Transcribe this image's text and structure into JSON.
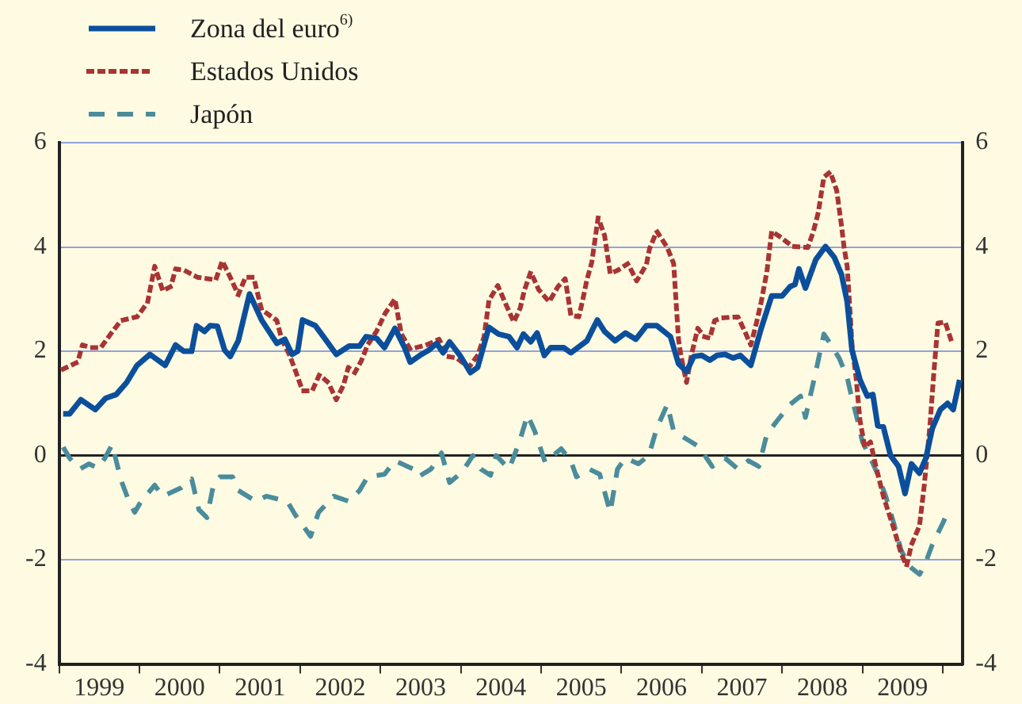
{
  "chart_data": {
    "type": "line",
    "xlim": [
      1999,
      2010.25
    ],
    "xticks": [
      {
        "value": 1999,
        "label": null
      },
      {
        "value": 1999.5,
        "label": "1999"
      },
      {
        "value": 2000,
        "label": null
      },
      {
        "value": 2000.5,
        "label": "2000"
      },
      {
        "value": 2001,
        "label": null
      },
      {
        "value": 2001.5,
        "label": "2001"
      },
      {
        "value": 2002,
        "label": null
      },
      {
        "value": 2002.5,
        "label": "2002"
      },
      {
        "value": 2003,
        "label": null
      },
      {
        "value": 2003.5,
        "label": "2003"
      },
      {
        "value": 2004,
        "label": null
      },
      {
        "value": 2004.5,
        "label": "2004"
      },
      {
        "value": 2005,
        "label": null
      },
      {
        "value": 2005.5,
        "label": "2005"
      },
      {
        "value": 2006,
        "label": null
      },
      {
        "value": 2006.5,
        "label": "2006"
      },
      {
        "value": 2007,
        "label": null
      },
      {
        "value": 2007.5,
        "label": "2007"
      },
      {
        "value": 2008,
        "label": null
      },
      {
        "value": 2008.5,
        "label": "2008"
      },
      {
        "value": 2009,
        "label": null
      },
      {
        "value": 2009.5,
        "label": "2009"
      },
      {
        "value": 2010,
        "label": null
      }
    ],
    "ylim": [
      -4,
      6
    ],
    "yticks": [
      -4,
      -2,
      0,
      2,
      4,
      6
    ],
    "y2lim": [
      -4,
      6
    ],
    "y2ticks": [
      -4,
      -2,
      0,
      2,
      4,
      6
    ],
    "grid": "y",
    "legend": "top left",
    "series": [
      {
        "name": "Zona del euro$^{6)}$",
        "color": "#0b4f9c",
        "line_style": "solid",
        "x": [
          1999.05,
          1999.13,
          1999.27,
          1999.45,
          1999.58,
          1999.71,
          1999.84,
          1999.97,
          2000.13,
          2000.32,
          2000.45,
          2000.55,
          2000.65,
          2000.71,
          2000.81,
          2000.88,
          2000.97,
          2001.06,
          2001.13,
          2001.23,
          2001.37,
          2001.52,
          2001.71,
          2001.81,
          2001.9,
          2001.97,
          2002.03,
          2002.19,
          2002.29,
          2002.45,
          2002.61,
          2002.74,
          2002.82,
          2002.95,
          2003.05,
          2003.18,
          2003.3,
          2003.37,
          2003.49,
          2003.6,
          2003.7,
          2003.78,
          2003.86,
          2003.99,
          2004.12,
          2004.21,
          2004.35,
          2004.47,
          2004.6,
          2004.7,
          2004.78,
          2004.87,
          2004.95,
          2005.04,
          2005.12,
          2005.28,
          2005.37,
          2005.57,
          2005.7,
          2005.79,
          2005.92,
          2006.05,
          2006.18,
          2006.31,
          2006.44,
          2006.61,
          2006.71,
          2006.81,
          2006.9,
          2007.0,
          2007.1,
          2007.19,
          2007.29,
          2007.39,
          2007.48,
          2007.61,
          2007.74,
          2007.87,
          2008.0,
          2008.1,
          2008.16,
          2008.21,
          2008.29,
          2008.42,
          2008.54,
          2008.65,
          2008.74,
          2008.81,
          2008.87,
          2008.97,
          2009.06,
          2009.13,
          2009.19,
          2009.26,
          2009.35,
          2009.45,
          2009.53,
          2009.61,
          2009.71,
          2009.79,
          2009.87,
          2009.97,
          2010.06,
          2010.13,
          2010.21
        ],
        "values": [
          0.8,
          0.8,
          1.07,
          0.88,
          1.1,
          1.17,
          1.4,
          1.73,
          1.94,
          1.73,
          2.12,
          2.0,
          2.0,
          2.49,
          2.38,
          2.49,
          2.48,
          2.02,
          1.9,
          2.2,
          3.1,
          2.6,
          2.15,
          2.23,
          1.94,
          2.0,
          2.6,
          2.49,
          2.28,
          1.94,
          2.1,
          2.1,
          2.28,
          2.25,
          2.07,
          2.44,
          2.07,
          1.79,
          1.92,
          2.02,
          2.15,
          1.97,
          2.18,
          1.92,
          1.59,
          1.69,
          2.46,
          2.33,
          2.28,
          2.07,
          2.33,
          2.18,
          2.35,
          1.92,
          2.07,
          2.07,
          1.97,
          2.2,
          2.6,
          2.38,
          2.2,
          2.35,
          2.23,
          2.49,
          2.49,
          2.28,
          1.76,
          1.61,
          1.9,
          1.92,
          1.83,
          1.92,
          1.94,
          1.87,
          1.92,
          1.73,
          2.44,
          3.06,
          3.06,
          3.24,
          3.28,
          3.58,
          3.21,
          3.76,
          4.01,
          3.8,
          3.47,
          2.95,
          2.02,
          1.45,
          1.14,
          1.17,
          0.57,
          0.55,
          0,
          -0.21,
          -0.73,
          -0.16,
          -0.34,
          -0.05,
          0.52,
          0.88,
          1.0,
          0.88,
          1.45
        ]
      },
      {
        "name": "Estados Unidos",
        "color": "#a83434",
        "line_style": "dotted",
        "x": [
          1999.05,
          1999.23,
          1999.29,
          1999.39,
          1999.52,
          1999.65,
          1999.77,
          1999.97,
          2000.1,
          2000.19,
          2000.29,
          2000.39,
          2000.45,
          2000.56,
          2000.72,
          2000.95,
          2001.03,
          2001.13,
          2001.23,
          2001.32,
          2001.42,
          2001.52,
          2001.71,
          2001.77,
          2001.87,
          2001.95,
          2002.03,
          2002.15,
          2002.24,
          2002.35,
          2002.45,
          2002.54,
          2002.6,
          2002.68,
          2002.76,
          2002.84,
          2002.95,
          2003.06,
          2003.18,
          2003.26,
          2003.37,
          2003.57,
          2003.73,
          2003.83,
          2003.95,
          2004.1,
          2004.21,
          2004.29,
          2004.35,
          2004.46,
          2004.57,
          2004.66,
          2004.74,
          2004.79,
          2004.87,
          2004.97,
          2005.1,
          2005.21,
          2005.3,
          2005.37,
          2005.47,
          2005.52,
          2005.57,
          2005.63,
          2005.71,
          2005.79,
          2005.86,
          2005.95,
          2006.08,
          2006.19,
          2006.31,
          2006.35,
          2006.44,
          2006.57,
          2006.65,
          2006.68,
          2006.71,
          2006.74,
          2006.81,
          2006.87,
          2006.95,
          2007.03,
          2007.1,
          2007.16,
          2007.26,
          2007.45,
          2007.55,
          2007.61,
          2007.68,
          2007.74,
          2007.81,
          2007.87,
          2007.97,
          2008.13,
          2008.32,
          2008.39,
          2008.45,
          2008.52,
          2008.6,
          2008.68,
          2008.74,
          2008.77,
          2008.81,
          2008.84,
          2008.87,
          2008.92,
          2008.97,
          2009.03,
          2009.1,
          2009.16,
          2009.26,
          2009.39,
          2009.48,
          2009.55,
          2009.61,
          2009.71,
          2009.77,
          2009.84,
          2009.89,
          2009.94,
          2010.03,
          2010.1
        ],
        "values": [
          1.66,
          1.79,
          2.12,
          2.07,
          2.07,
          2.35,
          2.59,
          2.66,
          2.93,
          3.63,
          3.16,
          3.24,
          3.58,
          3.55,
          3.42,
          3.37,
          3.73,
          3.42,
          3.08,
          3.42,
          3.42,
          2.8,
          2.59,
          2.23,
          1.92,
          1.59,
          1.24,
          1.24,
          1.55,
          1.4,
          1.07,
          1.35,
          1.69,
          1.59,
          1.81,
          2.12,
          2.38,
          2.73,
          3.0,
          2.33,
          2.04,
          2.12,
          2.23,
          1.9,
          1.87,
          1.69,
          1.92,
          2.28,
          2.97,
          3.26,
          2.87,
          2.56,
          2.83,
          3.16,
          3.52,
          3.18,
          2.95,
          3.24,
          3.39,
          2.69,
          2.66,
          3.0,
          3.37,
          3.7,
          4.56,
          4.22,
          3.49,
          3.55,
          3.68,
          3.35,
          3.66,
          3.97,
          4.3,
          3.99,
          3.68,
          2.95,
          2.23,
          1.92,
          1.4,
          1.92,
          2.44,
          2.28,
          2.25,
          2.59,
          2.64,
          2.66,
          2.33,
          2.12,
          2.54,
          2.95,
          3.52,
          4.3,
          4.2,
          4.01,
          3.99,
          4.3,
          4.66,
          5.34,
          5.44,
          5.08,
          4.4,
          4.01,
          3.63,
          2.9,
          2.12,
          1.5,
          0.67,
          0.16,
          0.26,
          -0.16,
          -0.78,
          -1.4,
          -1.87,
          -2.12,
          -1.71,
          -1.35,
          -0.57,
          0.57,
          1.61,
          2.54,
          2.56,
          2.23
        ]
      },
      {
        "name": "Japón",
        "color": "#4a8c9c",
        "line_style": "dashed",
        "x": [
          1999.05,
          1999.13,
          1999.26,
          1999.37,
          1999.48,
          1999.57,
          1999.66,
          1999.77,
          1999.87,
          1999.94,
          2000.02,
          2000.19,
          2000.29,
          2000.52,
          2000.65,
          2000.74,
          2000.84,
          2000.92,
          2001.0,
          2001.16,
          2001.23,
          2001.45,
          2001.58,
          2001.84,
          2001.94,
          2002.13,
          2002.23,
          2002.42,
          2002.61,
          2002.74,
          2002.84,
          2003.05,
          2003.18,
          2003.41,
          2003.47,
          2003.63,
          2003.76,
          2003.86,
          2004.02,
          2004.15,
          2004.25,
          2004.37,
          2004.44,
          2004.6,
          2004.73,
          2004.83,
          2004.92,
          2005.05,
          2005.25,
          2005.37,
          2005.44,
          2005.6,
          2005.73,
          2005.86,
          2005.95,
          2006.05,
          2006.21,
          2006.34,
          2006.44,
          2006.57,
          2006.65,
          2006.74,
          2006.87,
          2006.97,
          2007.06,
          2007.13,
          2007.29,
          2007.45,
          2007.58,
          2007.71,
          2007.81,
          2007.94,
          2008.1,
          2008.23,
          2008.29,
          2008.42,
          2008.52,
          2008.61,
          2008.71,
          2008.81,
          2008.87,
          2008.94,
          2009.0,
          2009.1,
          2009.19,
          2009.29,
          2009.39,
          2009.48,
          2009.58,
          2009.71,
          2009.77,
          2009.87,
          2010.0,
          2010.06
        ],
        "values": [
          0.16,
          -0.05,
          -0.26,
          -0.16,
          -0.24,
          -0.05,
          0.21,
          -0.47,
          -0.88,
          -1.09,
          -0.88,
          -0.57,
          -0.78,
          -0.62,
          -0.45,
          -1.04,
          -1.19,
          -0.57,
          -0.41,
          -0.41,
          -0.67,
          -0.88,
          -0.78,
          -0.88,
          -1.14,
          -1.55,
          -1.09,
          -0.78,
          -0.88,
          -0.67,
          -0.41,
          -0.36,
          -0.1,
          -0.26,
          -0.41,
          -0.26,
          0.05,
          -0.52,
          -0.31,
          0.0,
          -0.26,
          -0.38,
          0.0,
          -0.26,
          0.26,
          0.78,
          0.47,
          -0.13,
          0.13,
          -0.1,
          -0.41,
          -0.26,
          -0.36,
          -1.09,
          -0.26,
          -0.05,
          -0.16,
          0.0,
          0.52,
          0.98,
          0.47,
          0.38,
          0.26,
          0.16,
          -0.05,
          -0.21,
          -0.05,
          -0.26,
          -0.1,
          -0.21,
          0.41,
          0.67,
          0.98,
          1.14,
          0.73,
          1.61,
          2.33,
          2.12,
          1.87,
          1.5,
          1.09,
          0.67,
          0.26,
          -0.05,
          -0.36,
          -0.78,
          -1.3,
          -1.81,
          -2.12,
          -2.28,
          -2.12,
          -1.71,
          -1.3,
          -1.09
        ]
      }
    ]
  }
}
